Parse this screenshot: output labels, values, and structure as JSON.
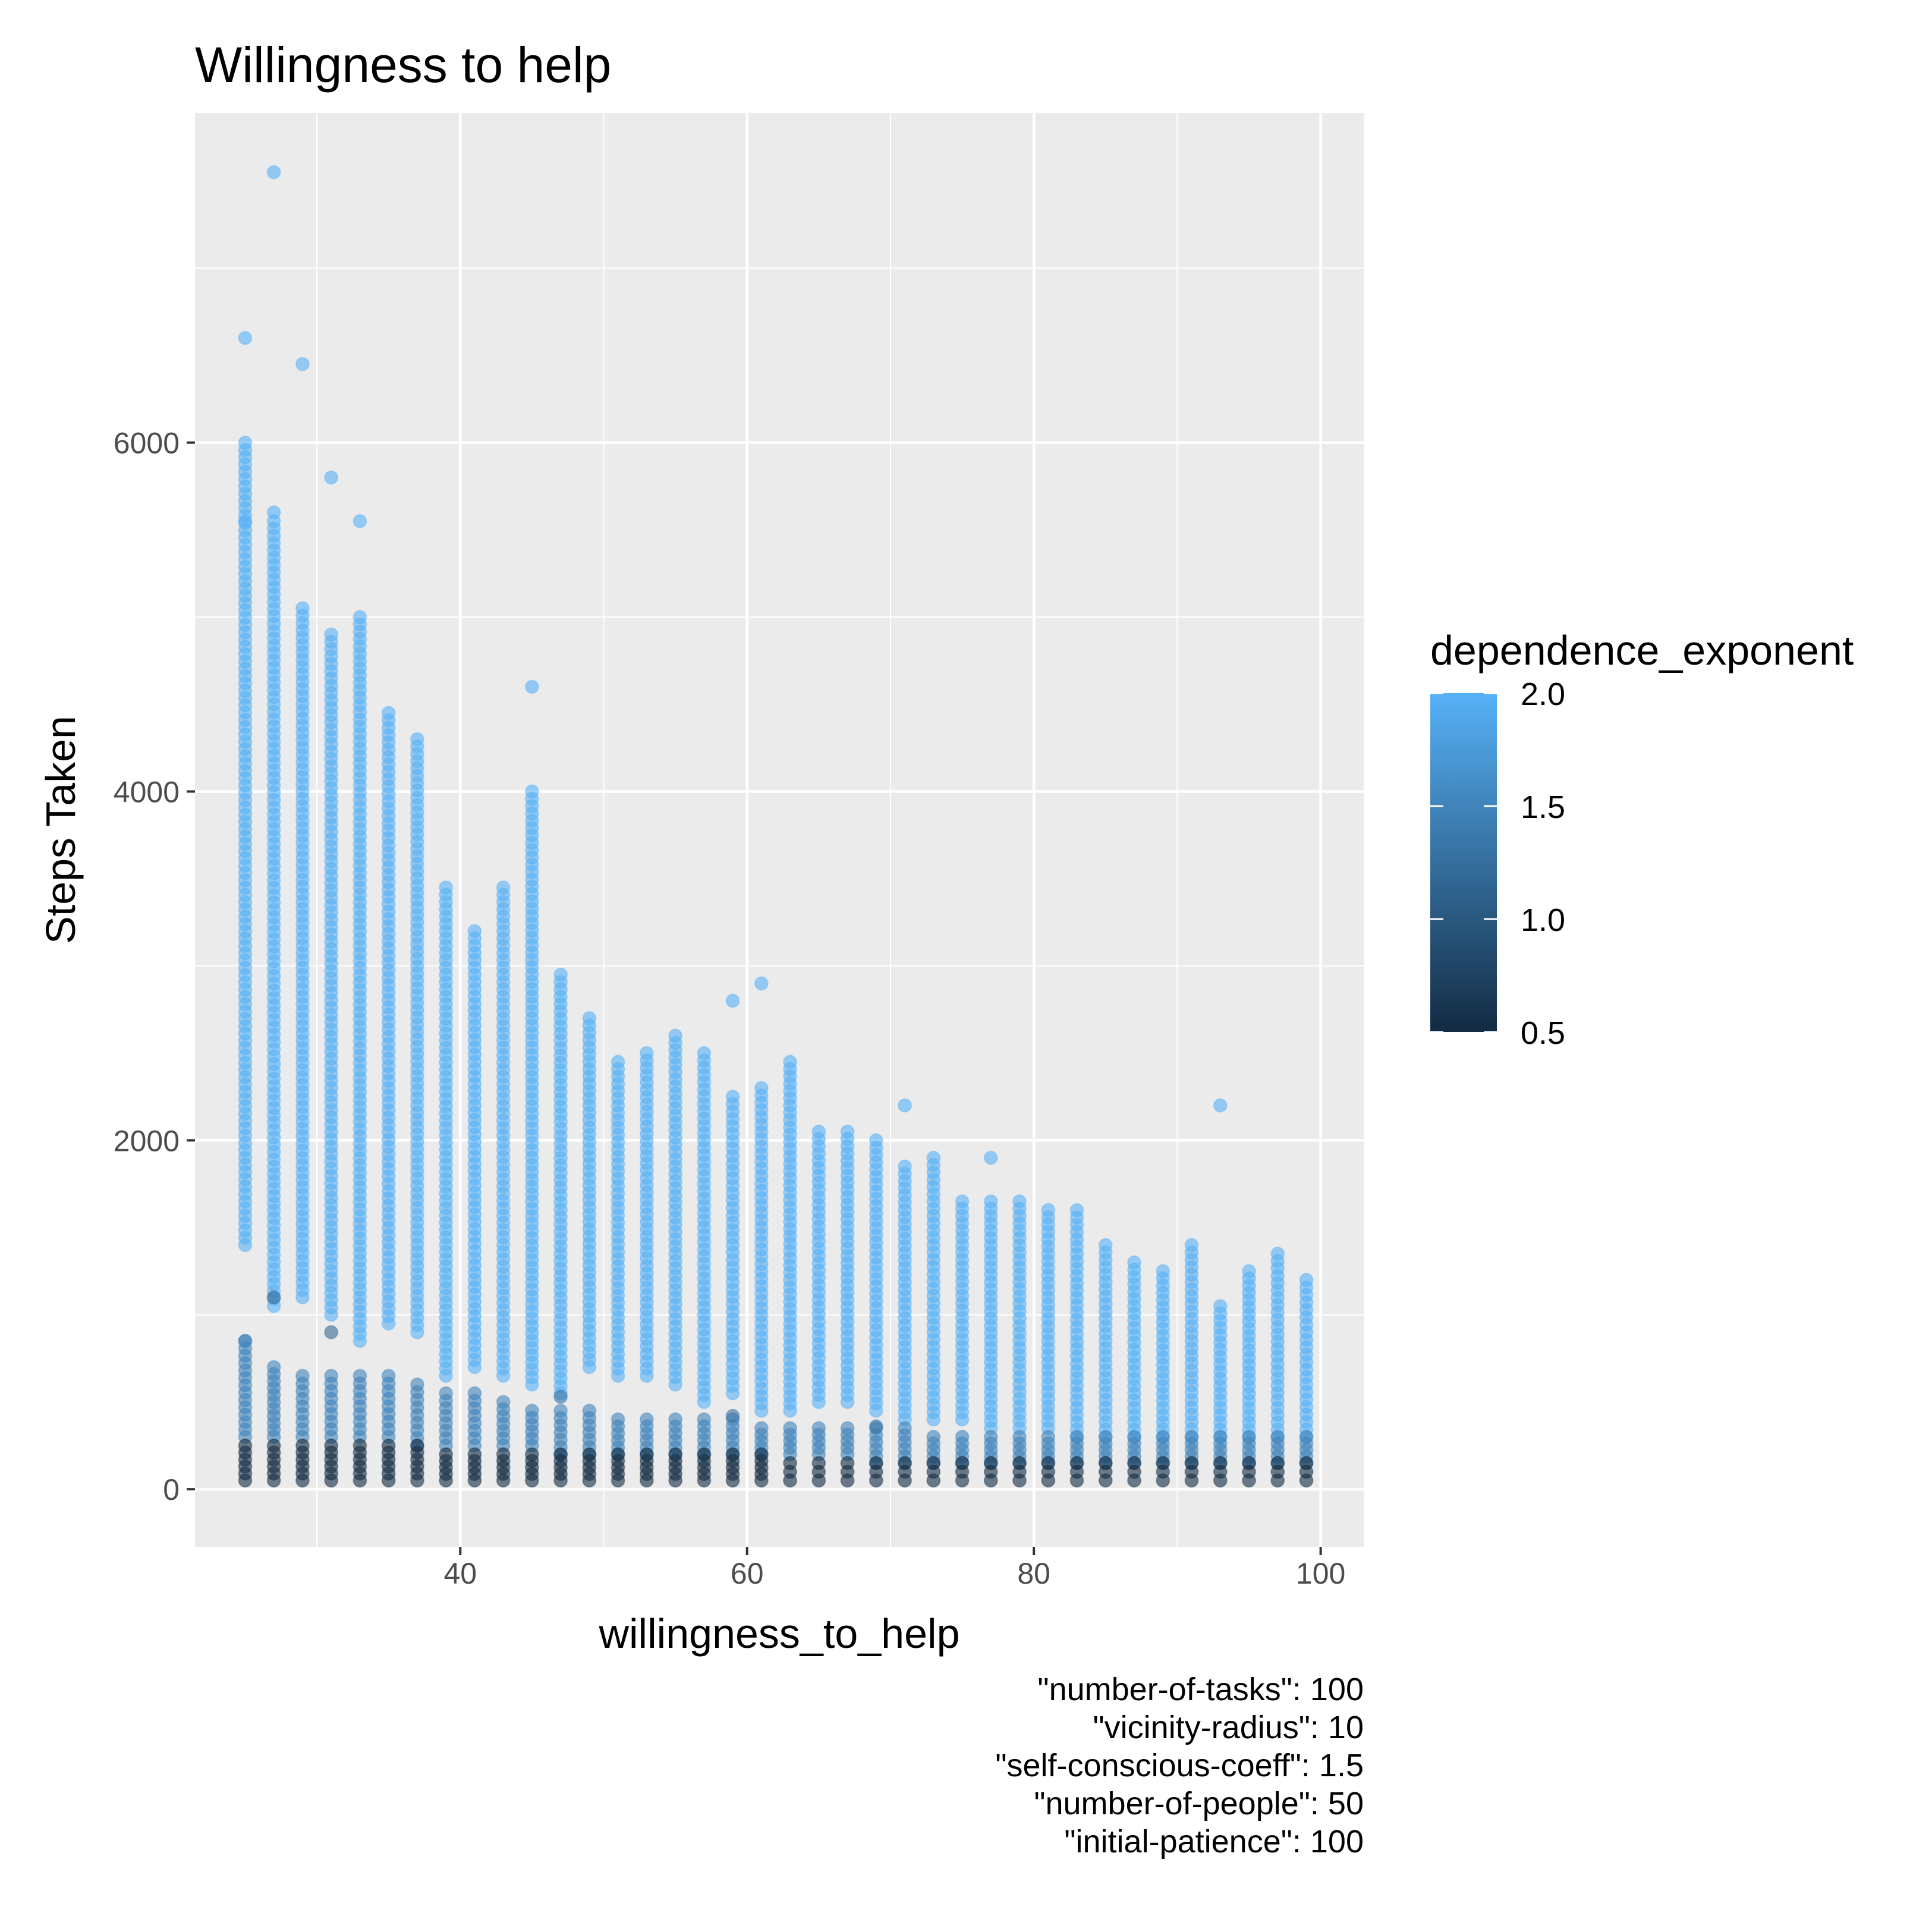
{
  "chart_data": {
    "type": "scatter",
    "title": "Willingness to help",
    "xlabel": "willingness_to_help",
    "ylabel": "Steps Taken",
    "xlim": [
      21.5,
      103
    ],
    "ylim": [
      -330,
      7890
    ],
    "x_ticks": [
      40,
      60,
      80,
      100
    ],
    "y_ticks": [
      0,
      2000,
      4000,
      6000
    ],
    "x_tick_labels": [
      "40",
      "60",
      "80",
      "100"
    ],
    "y_tick_labels": [
      "0",
      "2000",
      "4000",
      "6000"
    ],
    "grid": true,
    "color_scale": {
      "name": "dependence_exponent",
      "min": 0.5,
      "max": 2.0,
      "low_color": "#132b43",
      "high_color": "#56b1f7",
      "breaks": [
        2.0,
        1.5,
        1.0,
        0.5
      ],
      "break_labels": [
        "2.0",
        "1.5",
        "1.0",
        "0.5"
      ],
      "legend_position": "right"
    },
    "point_alpha": 0.6,
    "x_values": [
      25,
      27,
      29,
      31,
      33,
      35,
      37,
      39,
      41,
      43,
      45,
      47,
      49,
      51,
      53,
      55,
      57,
      59,
      61,
      63,
      65,
      67,
      69,
      71,
      73,
      75,
      77,
      79,
      81,
      83,
      85,
      87,
      89,
      91,
      93,
      95,
      97,
      99
    ],
    "series": [
      {
        "dependence_exponent": 2.0,
        "stack_min": [
          1400,
          1050,
          1100,
          1000,
          850,
          950,
          900,
          650,
          700,
          650,
          600,
          550,
          700,
          650,
          650,
          600,
          500,
          550,
          450,
          450,
          500,
          500,
          450,
          400,
          400,
          400,
          350,
          350,
          350,
          300,
          300,
          300,
          300,
          300,
          300,
          300,
          300,
          300
        ],
        "stack_max": [
          6000,
          5550,
          5050,
          4900,
          5000,
          4450,
          4300,
          3450,
          3200,
          3450,
          4000,
          2950,
          2700,
          2450,
          2500,
          2600,
          2500,
          2250,
          2300,
          2450,
          2050,
          2050,
          2000,
          1850,
          1900,
          1650,
          1650,
          1650,
          1600,
          1600,
          1400,
          1300,
          1250,
          1400,
          1050,
          1250,
          1350,
          1200
        ]
      },
      {
        "dependence_exponent": 1.5,
        "stack_min": [
          300,
          300,
          300,
          300,
          300,
          300,
          250,
          250,
          250,
          250,
          250,
          200,
          200,
          200,
          200,
          200,
          200,
          200,
          200,
          200,
          200,
          200,
          150,
          150,
          150,
          150,
          150,
          150,
          150,
          150,
          150,
          150,
          150,
          150,
          150,
          150,
          150,
          150
        ],
        "stack_max": [
          850,
          700,
          650,
          650,
          650,
          650,
          600,
          550,
          550,
          500,
          450,
          450,
          450,
          400,
          400,
          400,
          400,
          400,
          350,
          350,
          350,
          350,
          350,
          350,
          300,
          300,
          300,
          300,
          300,
          300,
          300,
          300,
          300,
          300,
          300,
          300,
          300,
          300
        ]
      },
      {
        "dependence_exponent": 0.5,
        "stack_min": [
          50,
          50,
          50,
          50,
          50,
          50,
          50,
          50,
          50,
          50,
          50,
          50,
          50,
          50,
          50,
          50,
          50,
          50,
          50,
          50,
          50,
          50,
          50,
          50,
          50,
          50,
          50,
          50,
          50,
          50,
          50,
          50,
          50,
          50,
          50,
          50,
          50,
          50
        ],
        "stack_max": [
          250,
          250,
          250,
          250,
          250,
          250,
          250,
          200,
          200,
          200,
          200,
          200,
          200,
          200,
          200,
          200,
          200,
          200,
          200,
          150,
          150,
          150,
          150,
          150,
          150,
          150,
          150,
          150,
          150,
          150,
          150,
          150,
          150,
          150,
          150,
          150,
          150,
          150
        ]
      }
    ],
    "outliers": [
      {
        "x": 27,
        "y": 7550,
        "c": 2.0
      },
      {
        "x": 25,
        "y": 6600,
        "c": 2.0
      },
      {
        "x": 29,
        "y": 6450,
        "c": 2.0
      },
      {
        "x": 31,
        "y": 5800,
        "c": 2.0
      },
      {
        "x": 27,
        "y": 5600,
        "c": 2.0
      },
      {
        "x": 33,
        "y": 5550,
        "c": 2.0
      },
      {
        "x": 25,
        "y": 5550,
        "c": 2.0
      },
      {
        "x": 45,
        "y": 4600,
        "c": 2.0
      },
      {
        "x": 59,
        "y": 2800,
        "c": 2.0
      },
      {
        "x": 61,
        "y": 2900,
        "c": 2.0
      },
      {
        "x": 71,
        "y": 2200,
        "c": 2.0
      },
      {
        "x": 77,
        "y": 1900,
        "c": 2.0
      },
      {
        "x": 93,
        "y": 2200,
        "c": 2.0
      },
      {
        "x": 25,
        "y": 850,
        "c": 1.5
      },
      {
        "x": 27,
        "y": 1100,
        "c": 1.2
      },
      {
        "x": 31,
        "y": 900,
        "c": 1.2
      },
      {
        "x": 47,
        "y": 530,
        "c": 1.3
      },
      {
        "x": 59,
        "y": 420,
        "c": 1.3
      },
      {
        "x": 69,
        "y": 360,
        "c": 1.3
      }
    ],
    "caption": [
      "\"number-of-tasks\": 100",
      "\"vicinity-radius\": 10",
      "\"self-conscious-coeff\": 1.5",
      "\"number-of-people\": 50",
      "\"initial-patience\": 100"
    ]
  }
}
